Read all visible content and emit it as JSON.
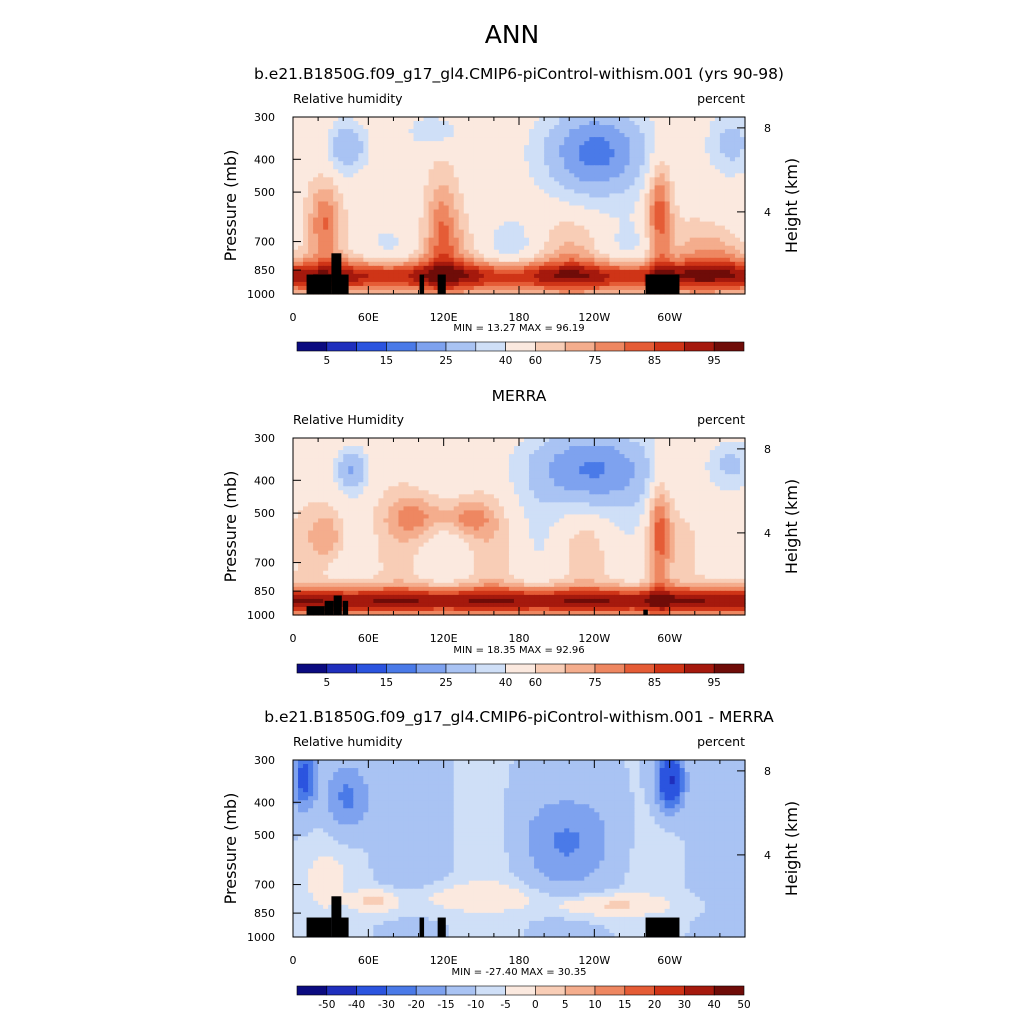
{
  "figure": {
    "title": "ANN"
  },
  "chart_data": [
    {
      "type": "heatmap",
      "title": "b.e21.B1850G.f09_g17_gl4.CMIP6-piControl-withism.001 (yrs 90-98)",
      "left_label": "Relative humidity",
      "right_label": "percent",
      "ylabel": "Pressure (mb)",
      "ylabel_right": "Height (km)",
      "x_ticks": [
        "0",
        "60E",
        "120E",
        "180",
        "120W",
        "60W"
      ],
      "y_ticks": [
        "300",
        "400",
        "500",
        "700",
        "850",
        "1000"
      ],
      "y_ticks_right": [
        "8",
        "4"
      ],
      "min_label": "MIN = ",
      "min": "13.27",
      "max_label": "MAX = ",
      "max": "96.19",
      "colorbar_ticks": [
        "5",
        "15",
        "25",
        "40",
        "60",
        "75",
        "85",
        "95"
      ],
      "palette": [
        "#0b0b80",
        "#1f2fbd",
        "#2b54df",
        "#4a7ae8",
        "#7ea2ef",
        "#a9c3f3",
        "#cfdff7",
        "#fbe9df",
        "#f8cdb6",
        "#f4ad8d",
        "#ee8761",
        "#e55c36",
        "#cf3417",
        "#a5190d",
        "#6f0c08"
      ]
    },
    {
      "type": "heatmap",
      "title": "MERRA",
      "left_label": "Relative Humidity",
      "right_label": "percent",
      "ylabel": "Pressure (mb)",
      "ylabel_right": "Height (km)",
      "x_ticks": [
        "0",
        "60E",
        "120E",
        "180",
        "120W",
        "60W"
      ],
      "y_ticks": [
        "300",
        "400",
        "500",
        "700",
        "850",
        "1000"
      ],
      "y_ticks_right": [
        "8",
        "4"
      ],
      "min_label": "MIN = ",
      "min": "18.35",
      "max_label": "MAX = ",
      "max": "92.96",
      "colorbar_ticks": [
        "5",
        "15",
        "25",
        "40",
        "60",
        "75",
        "85",
        "95"
      ],
      "palette": [
        "#0b0b80",
        "#1f2fbd",
        "#2b54df",
        "#4a7ae8",
        "#7ea2ef",
        "#a9c3f3",
        "#cfdff7",
        "#fbe9df",
        "#f8cdb6",
        "#f4ad8d",
        "#ee8761",
        "#e55c36",
        "#cf3417",
        "#a5190d",
        "#6f0c08"
      ]
    },
    {
      "type": "heatmap",
      "title": "b.e21.B1850G.f09_g17_gl4.CMIP6-piControl-withism.001 - MERRA",
      "left_label": "Relative humidity",
      "right_label": "percent",
      "ylabel": "Pressure (mb)",
      "ylabel_right": "Height (km)",
      "x_ticks": [
        "0",
        "60E",
        "120E",
        "180",
        "120W",
        "60W"
      ],
      "y_ticks": [
        "300",
        "400",
        "500",
        "700",
        "850",
        "1000"
      ],
      "y_ticks_right": [
        "8",
        "4"
      ],
      "min_label": "MIN = ",
      "min": "-27.40",
      "max_label": "MAX = ",
      "max": "30.35",
      "colorbar_ticks": [
        "-50",
        "-40",
        "-30",
        "-20",
        "-15",
        "-10",
        "-5",
        "0",
        "5",
        "10",
        "15",
        "20",
        "30",
        "40",
        "50"
      ],
      "palette": [
        "#0b0b80",
        "#1f2fbd",
        "#2b54df",
        "#4a7ae8",
        "#7ea2ef",
        "#a9c3f3",
        "#cfdff7",
        "#fbe9df",
        "#f8cdb6",
        "#f4ad8d",
        "#ee8761",
        "#e55c36",
        "#cf3417",
        "#a5190d",
        "#6f0c08"
      ]
    }
  ]
}
